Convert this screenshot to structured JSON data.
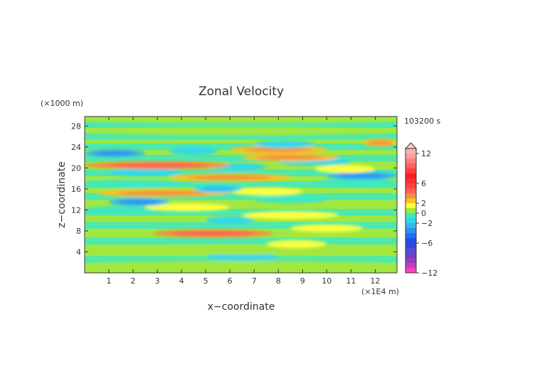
{
  "chart_data": {
    "type": "heatmap",
    "title": "Zonal Velocity",
    "xlabel": "x−coordinate",
    "ylabel": "z−coordinate",
    "x_unit": "(×1E4 m)",
    "y_unit": "(×1000 m)",
    "time_label": "103200 s",
    "xlim": [
      0,
      12.9
    ],
    "ylim": [
      0,
      29.8
    ],
    "x_ticks": [
      1,
      2,
      3,
      4,
      5,
      6,
      7,
      8,
      9,
      10,
      11,
      12
    ],
    "y_ticks": [
      4,
      8,
      12,
      16,
      20,
      24,
      28
    ],
    "colorbar": {
      "ticks": [
        "12",
        "6",
        "2",
        "0",
        "−2",
        "−6",
        "−12"
      ],
      "levels": [
        -12,
        -11,
        -10,
        -9,
        -8,
        -7,
        -6,
        -5,
        -4,
        -3,
        -2,
        -1,
        0,
        1,
        2,
        3,
        4,
        5,
        6,
        7,
        8,
        9,
        10,
        11,
        12,
        13
      ],
      "colors": [
        "#ff40c0",
        "#c040c0",
        "#9040c0",
        "#7040c8",
        "#5050d0",
        "#4040e0",
        "#2050e8",
        "#2070f0",
        "#3090f0",
        "#30b8f0",
        "#30d8e8",
        "#40e8c0",
        "#a0e840",
        "#ffff40",
        "#ffc020",
        "#f09040",
        "#ff6050",
        "#ff4040",
        "#ff3030",
        "#ff2020",
        "#ff4040",
        "#ff6060",
        "#ff8080",
        "#ffa0a0",
        "#ffb0b0",
        "#ffc0c0"
      ]
    },
    "bands": [
      {
        "z": 1.5,
        "x0": 0,
        "x1": 12.9,
        "v": 0.3
      },
      {
        "z": 3.0,
        "x0": 5.0,
        "x1": 8.0,
        "v": -1.2
      },
      {
        "z": 4.2,
        "x0": 0,
        "x1": 12.9,
        "v": 0.5
      },
      {
        "z": 5.5,
        "x0": 7.5,
        "x1": 10.0,
        "v": 1.8
      },
      {
        "z": 7.5,
        "x0": 2.8,
        "x1": 7.8,
        "v": 3.2
      },
      {
        "z": 8.5,
        "x0": 8.5,
        "x1": 11.5,
        "v": 1.8
      },
      {
        "z": 10.0,
        "x0": 5.0,
        "x1": 7.0,
        "v": -1.5
      },
      {
        "z": 11.0,
        "x0": 6.5,
        "x1": 10.5,
        "v": 1.5
      },
      {
        "z": 12.0,
        "x0": 0,
        "x1": 3.0,
        "v": -0.8
      },
      {
        "z": 12.5,
        "x0": 2.5,
        "x1": 6.0,
        "v": 1.8
      },
      {
        "z": 13.5,
        "x0": 1.0,
        "x1": 3.5,
        "v": -2.5
      },
      {
        "z": 14.0,
        "x0": 7.0,
        "x1": 10.0,
        "v": -1.0
      },
      {
        "z": 15.2,
        "x0": 0.5,
        "x1": 6.0,
        "v": 2.2
      },
      {
        "z": 15.5,
        "x0": 6.0,
        "x1": 9.0,
        "v": 1.5
      },
      {
        "z": 16.0,
        "x0": 4.5,
        "x1": 6.5,
        "v": -2.0
      },
      {
        "z": 17.0,
        "x0": 0,
        "x1": 4.0,
        "v": -1.0
      },
      {
        "z": 17.2,
        "x0": 9.5,
        "x1": 12.9,
        "v": -1.0
      },
      {
        "z": 18.2,
        "x0": 3.5,
        "x1": 8.5,
        "v": 2.5
      },
      {
        "z": 18.5,
        "x0": 10.0,
        "x1": 12.9,
        "v": -2.5
      },
      {
        "z": 19.2,
        "x0": 1.0,
        "x1": 4.0,
        "v": -1.2
      },
      {
        "z": 19.8,
        "x0": 9.5,
        "x1": 12.0,
        "v": 1.8
      },
      {
        "z": 20.2,
        "x0": 5.0,
        "x1": 7.5,
        "v": -1.5
      },
      {
        "z": 20.5,
        "x0": 0,
        "x1": 6.0,
        "v": 3.0
      },
      {
        "z": 21.2,
        "x0": 8.0,
        "x1": 11.0,
        "v": -1.2
      },
      {
        "z": 22.0,
        "x0": 6.5,
        "x1": 10.5,
        "v": 2.0
      },
      {
        "z": 22.8,
        "x0": 0,
        "x1": 2.5,
        "v": -2.5
      },
      {
        "z": 23.2,
        "x0": 3.5,
        "x1": 5.5,
        "v": -1.5
      },
      {
        "z": 23.5,
        "x0": 6.0,
        "x1": 10.0,
        "v": 2.2
      },
      {
        "z": 24.5,
        "x0": 7.0,
        "x1": 9.5,
        "v": -1.2
      },
      {
        "z": 24.8,
        "x0": 11.5,
        "x1": 12.9,
        "v": 2.0
      },
      {
        "z": 27.0,
        "x0": 0,
        "x1": 12.9,
        "v": 0.5
      },
      {
        "z": 29.3,
        "x0": 0,
        "x1": 12.9,
        "v": 0.8
      }
    ]
  }
}
